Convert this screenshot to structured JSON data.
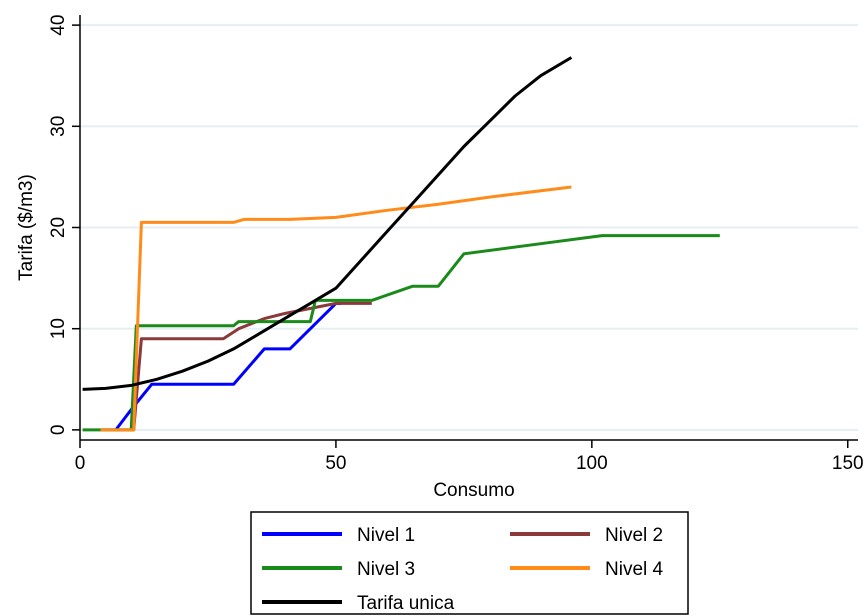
{
  "chart_data": {
    "type": "line",
    "xlabel": "Consumo",
    "ylabel": "Tarifa ($/m3)",
    "xlim": [
      0,
      152
    ],
    "ylim": [
      -1,
      41
    ],
    "x_ticks": [
      0,
      50,
      100,
      150
    ],
    "y_ticks": [
      0,
      10,
      20,
      30,
      40
    ],
    "grid": "horizontal",
    "legend_position": "bottom",
    "series": [
      {
        "name": "Nivel 1",
        "color": "#0000ff",
        "points": [
          [
            7,
            0
          ],
          [
            10,
            2
          ],
          [
            14,
            4.5
          ],
          [
            30,
            4.5
          ],
          [
            36,
            8
          ],
          [
            41,
            8
          ],
          [
            50,
            12.5
          ],
          [
            51,
            12.5
          ]
        ]
      },
      {
        "name": "Nivel 2",
        "color": "#8b3a3a",
        "points": [
          [
            4,
            0
          ],
          [
            10.5,
            0
          ],
          [
            12,
            9
          ],
          [
            28,
            9
          ],
          [
            31,
            10
          ],
          [
            36,
            11
          ],
          [
            40,
            11.5
          ],
          [
            50,
            12.5
          ],
          [
            57,
            12.5
          ]
        ]
      },
      {
        "name": "Nivel 3",
        "color": "#1a8a1a",
        "points": [
          [
            0.5,
            0
          ],
          [
            10,
            0
          ],
          [
            11,
            10.3
          ],
          [
            30,
            10.3
          ],
          [
            31,
            10.7
          ],
          [
            45,
            10.7
          ],
          [
            46,
            12.8
          ],
          [
            57,
            12.8
          ],
          [
            65,
            14.2
          ],
          [
            70,
            14.2
          ],
          [
            75,
            17.4
          ],
          [
            90,
            18.4
          ],
          [
            102,
            19.2
          ],
          [
            125,
            19.2
          ]
        ]
      },
      {
        "name": "Nivel 4",
        "color": "#ff8c1a",
        "points": [
          [
            4,
            0
          ],
          [
            10.5,
            0
          ],
          [
            12,
            20.5
          ],
          [
            30,
            20.5
          ],
          [
            32,
            20.8
          ],
          [
            41,
            20.8
          ],
          [
            50,
            21
          ],
          [
            60,
            21.7
          ],
          [
            70,
            22.3
          ],
          [
            80,
            23
          ],
          [
            96,
            24
          ]
        ]
      },
      {
        "name": "Tarifa unica",
        "color": "#000000",
        "points": [
          [
            0.5,
            4
          ],
          [
            5,
            4.1
          ],
          [
            10,
            4.4
          ],
          [
            15,
            5
          ],
          [
            20,
            5.8
          ],
          [
            25,
            6.8
          ],
          [
            30,
            8
          ],
          [
            35,
            9.5
          ],
          [
            40,
            11
          ],
          [
            45,
            12.5
          ],
          [
            50,
            14
          ],
          [
            55,
            16.8
          ],
          [
            60,
            19.6
          ],
          [
            65,
            22.4
          ],
          [
            70,
            25.2
          ],
          [
            75,
            28
          ],
          [
            80,
            30.5
          ],
          [
            85,
            33
          ],
          [
            90,
            35
          ],
          [
            96,
            36.8
          ]
        ]
      }
    ]
  }
}
